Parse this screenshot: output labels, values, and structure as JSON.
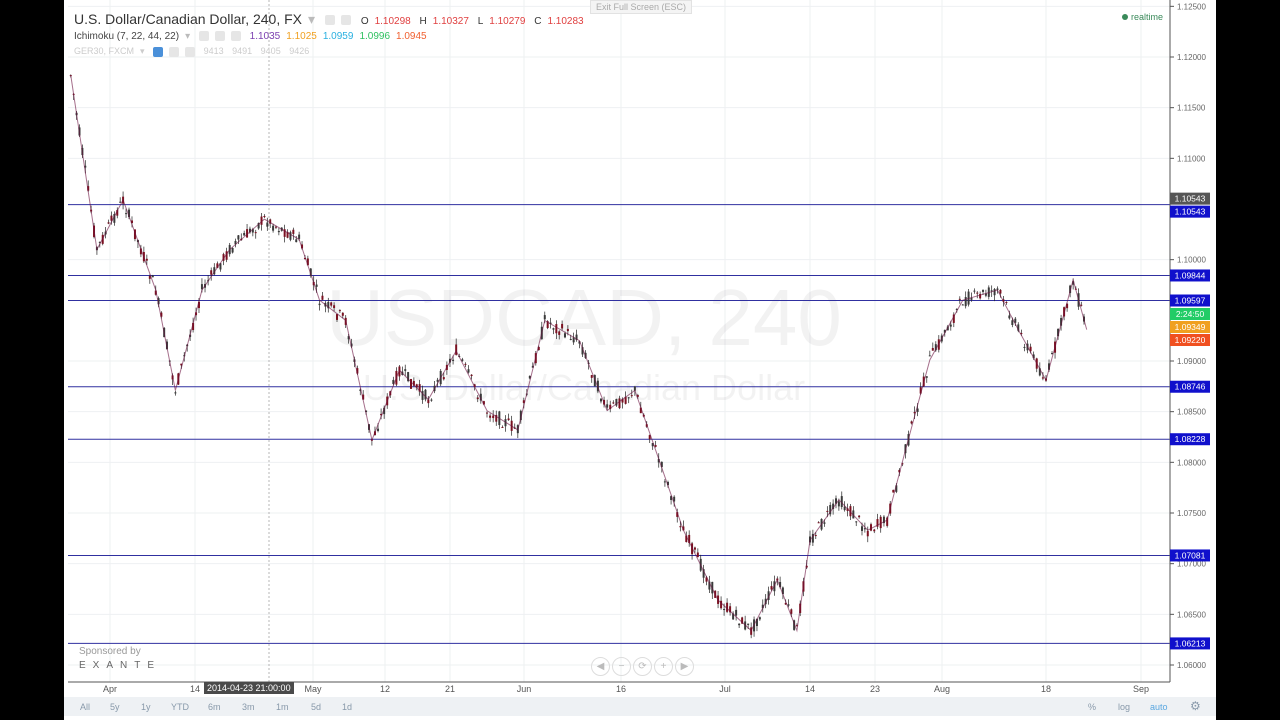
{
  "header": {
    "title": "U.S. Dollar/Canadian Dollar, 240, FX",
    "ohlc": {
      "o_label": "O",
      "o": "1.10298",
      "h_label": "H",
      "h": "1.10327",
      "l_label": "L",
      "l": "1.10279",
      "c_label": "C",
      "c": "1.10283"
    },
    "indicator": {
      "name": "Ichimoku (7, 22, 44, 22)",
      "values": [
        "1.1035",
        "1.1025",
        "1.0959",
        "1.0996",
        "1.0945"
      ],
      "colors": [
        "#7b3fb0",
        "#f0a020",
        "#2ab0e0",
        "#2fc060",
        "#f06030"
      ]
    },
    "compare": {
      "name": "GER30, FXCM",
      "values": [
        "9413",
        "9491",
        "9405",
        "9426"
      ]
    },
    "exit_fullscreen": "Exit Full Screen (ESC)",
    "realtime": "realtime"
  },
  "watermark": {
    "symbol": "USDCAD, 240",
    "description": "U.S. Dollar/Canadian Dollar"
  },
  "sponsor": {
    "label": "Sponsored by",
    "brand": "EXANTE"
  },
  "crosshair_label": "2014-04-23 21:00:00",
  "nav_buttons": [
    "◀",
    "−",
    "⟳",
    "+",
    "▶"
  ],
  "bottom_bar": {
    "ranges": [
      "All",
      "5y",
      "1y",
      "YTD",
      "6m",
      "3m",
      "1m",
      "5d",
      "1d"
    ],
    "percent": "%",
    "log": "log",
    "auto": "auto"
  },
  "chart_data": {
    "type": "candlestick",
    "ylim": [
      1.058,
      1.125
    ],
    "y_ticks": [
      "1.12500",
      "1.12000",
      "1.11500",
      "1.11000",
      "1.10000",
      "1.09000",
      "1.08500",
      "1.08000",
      "1.07500",
      "1.07000",
      "1.06500",
      "1.06000"
    ],
    "x_ticks": [
      {
        "label": "Apr",
        "date": "2014-04-01"
      },
      {
        "label": "14",
        "date": "2014-04-14"
      },
      {
        "label": "May",
        "date": "2014-05-01"
      },
      {
        "label": "12",
        "date": "2014-05-12"
      },
      {
        "label": "21",
        "date": "2014-05-21"
      },
      {
        "label": "Jun",
        "date": "2014-06-02"
      },
      {
        "label": "16",
        "date": "2014-06-16"
      },
      {
        "label": "Jul",
        "date": "2014-07-01"
      },
      {
        "label": "14",
        "date": "2014-07-14"
      },
      {
        "label": "23",
        "date": "2014-07-23"
      },
      {
        "label": "Aug",
        "date": "2014-08-03"
      },
      {
        "label": "18",
        "date": "2014-08-18"
      },
      {
        "label": "Sep",
        "date": "2014-09-01"
      }
    ],
    "horizontal_levels": [
      "1.10543",
      "1.09844",
      "1.09597",
      "1.08746",
      "1.08228",
      "1.07081",
      "1.06213"
    ],
    "current_price": {
      "value": "1.10543",
      "color": "#555555"
    },
    "countdown": {
      "text": "2:24:50",
      "color": "#22cc66"
    },
    "extra_labels": [
      {
        "value": "1.09349",
        "color": "#f0a020"
      },
      {
        "value": "1.09220",
        "color": "#f05020"
      }
    ],
    "level_color": "#1010cc",
    "price_path": [
      [
        "2014-03-26",
        1.1182
      ],
      [
        "2014-03-30",
        1.101
      ],
      [
        "2014-04-03",
        1.1059
      ],
      [
        "2014-04-08",
        1.097
      ],
      [
        "2014-04-11",
        1.0871
      ],
      [
        "2014-04-15",
        1.097
      ],
      [
        "2014-04-19",
        1.101
      ],
      [
        "2014-04-24",
        1.104
      ],
      [
        "2014-04-29",
        1.102
      ],
      [
        "2014-05-02",
        1.096
      ],
      [
        "2014-05-06",
        1.094
      ],
      [
        "2014-05-10",
        1.0822
      ],
      [
        "2014-05-14",
        1.0891
      ],
      [
        "2014-05-18",
        1.0862
      ],
      [
        "2014-05-22",
        1.091
      ],
      [
        "2014-05-27",
        1.0851
      ],
      [
        "2014-06-01",
        1.0832
      ],
      [
        "2014-06-05",
        1.094
      ],
      [
        "2014-06-10",
        1.092
      ],
      [
        "2014-06-14",
        1.0851
      ],
      [
        "2014-06-18",
        1.0871
      ],
      [
        "2014-06-21",
        1.0812
      ],
      [
        "2014-06-25",
        1.0733
      ],
      [
        "2014-06-30",
        1.0664
      ],
      [
        "2014-07-05",
        1.0634
      ],
      [
        "2014-07-09",
        1.0684
      ],
      [
        "2014-07-12",
        1.0634
      ],
      [
        "2014-07-14",
        1.0723
      ],
      [
        "2014-07-18",
        1.0763
      ],
      [
        "2014-07-22",
        1.0733
      ],
      [
        "2014-07-25",
        1.0743
      ],
      [
        "2014-07-28",
        1.0812
      ],
      [
        "2014-08-01",
        1.0901
      ],
      [
        "2014-08-06",
        1.096
      ],
      [
        "2014-08-11",
        1.097
      ],
      [
        "2014-08-14",
        1.0931
      ],
      [
        "2014-08-18",
        1.0881
      ],
      [
        "2014-08-22",
        1.098
      ],
      [
        "2014-08-24",
        1.0931
      ]
    ]
  }
}
